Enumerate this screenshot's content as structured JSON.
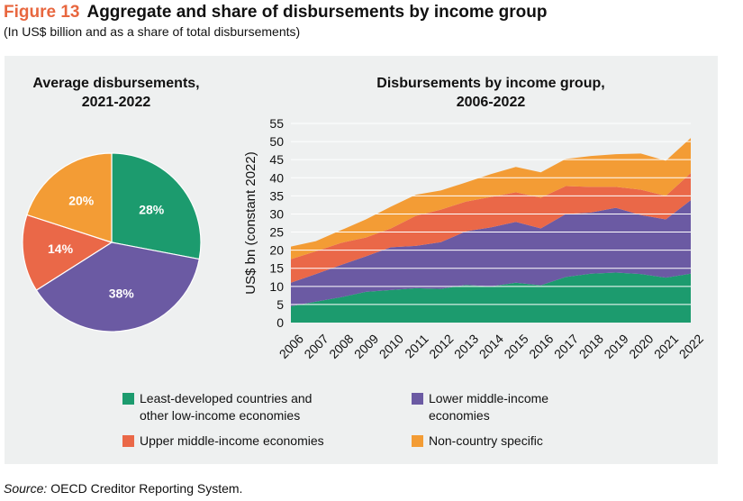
{
  "figure": {
    "label": "Figure 13",
    "title": "Aggregate and share of disbursements by income group",
    "subtitle": "(In US$ billion and as a share of total disbursements)"
  },
  "source": {
    "label": "Source:",
    "text": "OECD Creditor Reporting System."
  },
  "colors": {
    "ldc": "#1c9b6e",
    "lmic": "#6b5aa3",
    "umic": "#ea6848",
    "ncs": "#f39c35",
    "panel": "#eef0f0",
    "grid": "#ffffff"
  },
  "legend": [
    {
      "key": "ldc",
      "label_line1": "Least-developed countries and",
      "label_line2": "other low-income economies"
    },
    {
      "key": "lmic",
      "label_line1": "Lower middle-income",
      "label_line2": "economies"
    },
    {
      "key": "umic",
      "label_line1": "Upper middle-income economies",
      "label_line2": ""
    },
    {
      "key": "ncs",
      "label_line1": "Non-country specific",
      "label_line2": ""
    }
  ],
  "chart_data": [
    {
      "type": "pie",
      "title_line1": "Average disbursements,",
      "title_line2": "2021-2022",
      "slices": [
        {
          "key": "ldc",
          "value": 28,
          "label": "28%"
        },
        {
          "key": "lmic",
          "value": 38,
          "label": "38%"
        },
        {
          "key": "umic",
          "value": 14,
          "label": "14%"
        },
        {
          "key": "ncs",
          "value": 20,
          "label": "20%"
        }
      ]
    },
    {
      "type": "area",
      "stacked": true,
      "title_line1": "Disbursements by income group,",
      "title_line2": "2006-2022",
      "ylabel": "US$ bn (constant 2022)",
      "ylim": [
        0,
        55
      ],
      "yticks": [
        "0",
        "5",
        "10",
        "15",
        "20",
        "25",
        "30",
        "35",
        "40",
        "45",
        "50",
        "55"
      ],
      "grid": true,
      "x": [
        "2006",
        "2007",
        "2008",
        "2009",
        "2010",
        "2011",
        "2012",
        "2013",
        "2014",
        "2015",
        "2016",
        "2017",
        "2018",
        "2019",
        "2020",
        "2021",
        "2022"
      ],
      "series": [
        {
          "key": "ldc",
          "name": "Least-developed countries and other low-income economies",
          "values": [
            4.5,
            5.8,
            7.0,
            8.5,
            9.0,
            9.5,
            9.3,
            10.4,
            10.0,
            11.0,
            10.3,
            12.6,
            13.5,
            13.8,
            13.4,
            12.4,
            13.5
          ]
        },
        {
          "key": "lmic",
          "name": "Lower middle-income economies",
          "values": [
            6.5,
            7.6,
            8.9,
            9.8,
            11.8,
            11.7,
            12.9,
            14.8,
            16.3,
            16.8,
            15.7,
            17.4,
            16.9,
            17.9,
            16.3,
            16.1,
            20.3
          ]
        },
        {
          "key": "umic",
          "name": "Upper middle-income economies",
          "values": [
            6.5,
            6.3,
            6.1,
            5.2,
            5.2,
            8.3,
            9.0,
            8.2,
            8.4,
            8.2,
            8.5,
            7.7,
            7.1,
            5.8,
            7.0,
            6.5,
            7.5
          ]
        },
        {
          "key": "ncs",
          "name": "Non-country specific",
          "values": [
            3.5,
            2.8,
            3.5,
            5.0,
            6.0,
            5.8,
            5.3,
            5.3,
            6.3,
            7.0,
            7.0,
            7.5,
            8.5,
            9.0,
            10.0,
            9.7,
            9.7
          ]
        }
      ]
    }
  ]
}
